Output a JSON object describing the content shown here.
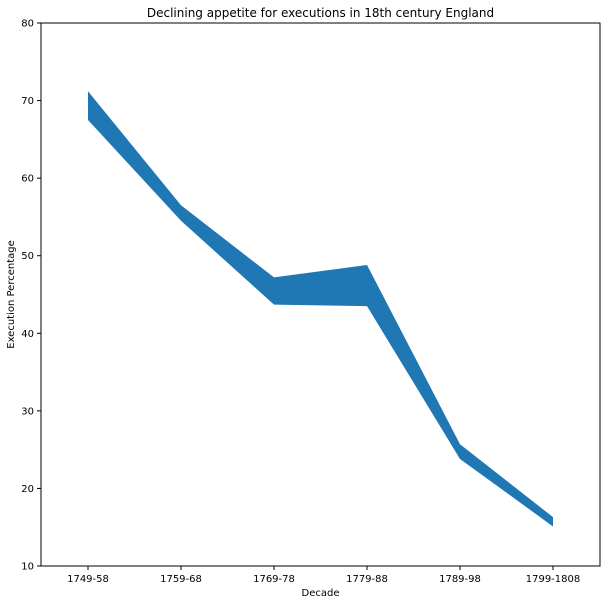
{
  "chart_data": {
    "type": "area",
    "title": "Declining appetite for executions in 18th century England",
    "xlabel": "Decade",
    "ylabel": "Execution Percentage",
    "categories": [
      "1749-58",
      "1759-68",
      "1769-78",
      "1779-88",
      "1789-98",
      "1799-1808"
    ],
    "series": [
      {
        "lower": [
          67.5,
          54.5,
          43.7,
          43.5,
          23.8,
          15.1
        ],
        "upper": [
          71.2,
          56.5,
          47.2,
          48.8,
          25.7,
          16.3
        ]
      }
    ],
    "ylim": [
      10,
      80
    ],
    "yticks": [
      10,
      20,
      30,
      40,
      50,
      60,
      70,
      80
    ],
    "grid": false,
    "colors": {
      "fill": "#1f77b4"
    }
  }
}
